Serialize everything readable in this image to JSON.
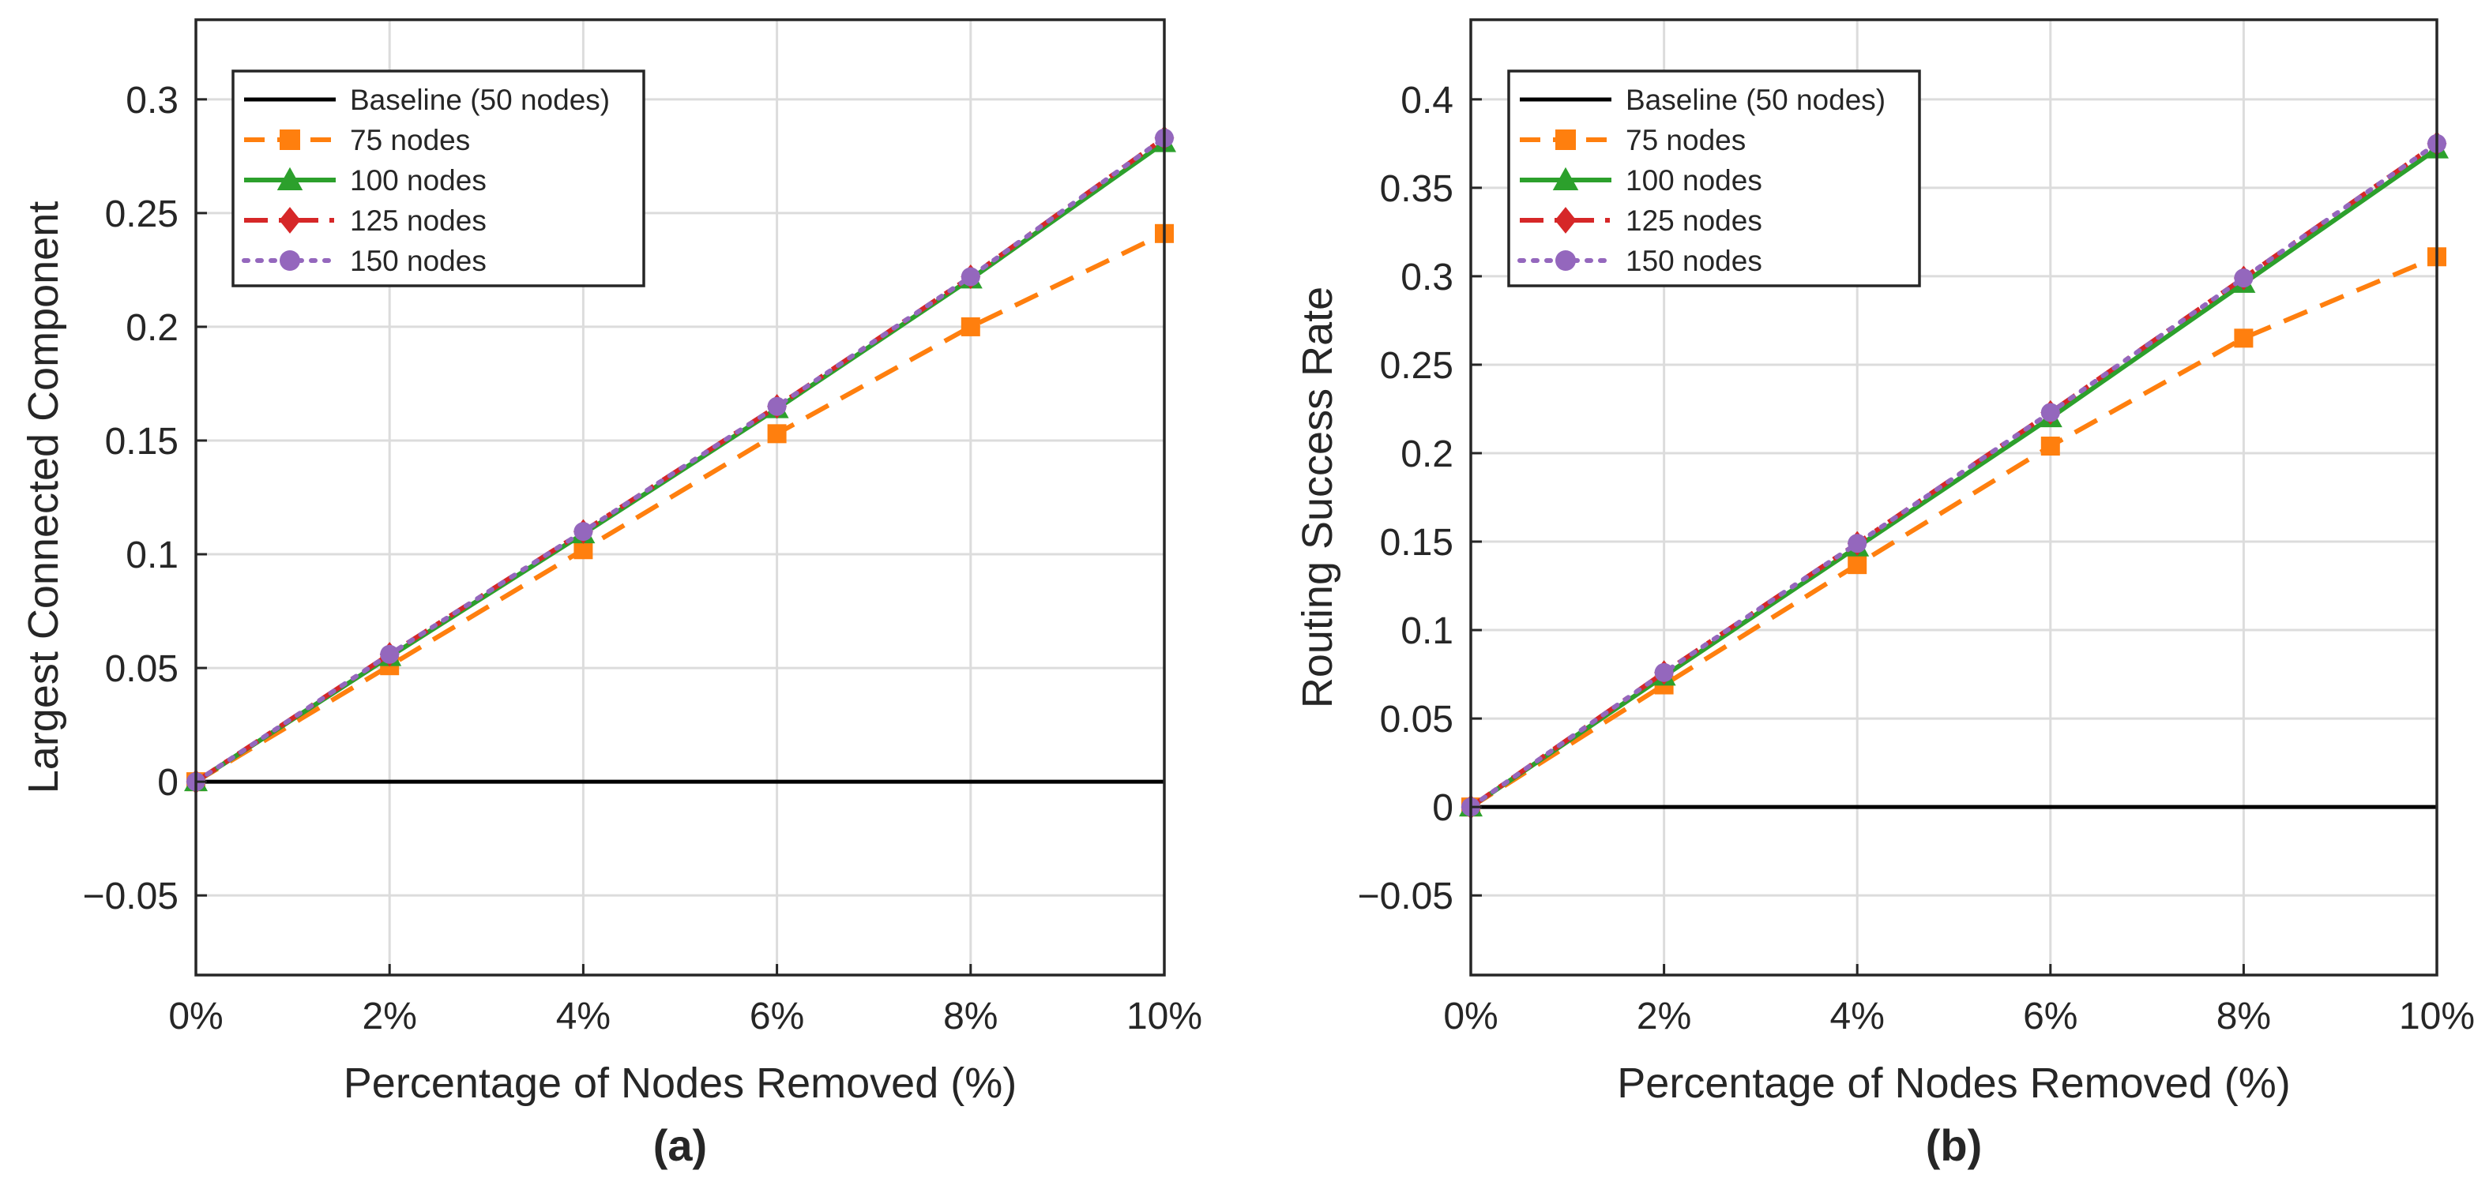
{
  "figure": {
    "colors": {
      "baseline": "#000000",
      "75": "#FF7F0E",
      "100": "#2CA02C",
      "125": "#D62728",
      "150": "#9467BD",
      "grid": "#DCDCDC",
      "axis": "#262626"
    }
  },
  "chart_data": [
    {
      "type": "line",
      "panel_label": "(a)",
      "xlabel": "Percentage of Nodes Removed (%)",
      "ylabel": "Largest Connected Component",
      "x": [
        0,
        2,
        4,
        6,
        8,
        10
      ],
      "x_tick_labels": [
        "0%",
        "2%",
        "4%",
        "6%",
        "8%",
        "10%"
      ],
      "xlim": [
        0,
        10
      ],
      "ylim": [
        -0.085,
        0.335
      ],
      "y_ticks": [
        -0.05,
        0,
        0.05,
        0.1,
        0.15,
        0.2,
        0.25,
        0.3
      ],
      "y_tick_labels": [
        "−0.05",
        "0",
        "0.05",
        "0.1",
        "0.15",
        "0.2",
        "0.25",
        "0.3"
      ],
      "grid": true,
      "legend_position": "top-left",
      "series": [
        {
          "name": "Baseline (50 nodes)",
          "values": [
            0,
            0,
            0,
            0,
            0,
            0
          ],
          "color": "#000000",
          "style": "solid",
          "marker": "none"
        },
        {
          "name": "75 nodes",
          "values": [
            0,
            0.051,
            0.102,
            0.153,
            0.2,
            0.241
          ],
          "color": "#FF7F0E",
          "style": "dashed",
          "marker": "square"
        },
        {
          "name": "100 nodes",
          "values": [
            0,
            0.055,
            0.109,
            0.164,
            0.221,
            0.281
          ],
          "color": "#2CA02C",
          "style": "solid",
          "marker": "triangle"
        },
        {
          "name": "125 nodes",
          "values": [
            0,
            0.056,
            0.11,
            0.165,
            0.222,
            0.283
          ],
          "color": "#D62728",
          "style": "dashdot",
          "marker": "diamond"
        },
        {
          "name": "150 nodes",
          "values": [
            0,
            0.056,
            0.11,
            0.165,
            0.222,
            0.283
          ],
          "color": "#9467BD",
          "style": "dotted",
          "marker": "circle"
        }
      ]
    },
    {
      "type": "line",
      "panel_label": "(b)",
      "xlabel": "Percentage of Nodes Removed (%)",
      "ylabel": "Routing Success Rate",
      "x": [
        0,
        2,
        4,
        6,
        8,
        10
      ],
      "x_tick_labels": [
        "0%",
        "2%",
        "4%",
        "6%",
        "8%",
        "10%"
      ],
      "xlim": [
        0,
        10
      ],
      "ylim": [
        -0.095,
        0.445
      ],
      "y_ticks": [
        -0.05,
        0,
        0.05,
        0.1,
        0.15,
        0.2,
        0.25,
        0.3,
        0.35,
        0.4
      ],
      "y_tick_labels": [
        "−0.05",
        "0",
        "0.05",
        "0.1",
        "0.15",
        "0.2",
        "0.25",
        "0.3",
        "0.35",
        "0.4"
      ],
      "grid": true,
      "legend_position": "top-left",
      "series": [
        {
          "name": "Baseline (50 nodes)",
          "values": [
            0,
            0,
            0,
            0,
            0,
            0
          ],
          "color": "#000000",
          "style": "solid",
          "marker": "none"
        },
        {
          "name": "75 nodes",
          "values": [
            0,
            0.069,
            0.137,
            0.204,
            0.265,
            0.311
          ],
          "color": "#FF7F0E",
          "style": "dashed",
          "marker": "square"
        },
        {
          "name": "100 nodes",
          "values": [
            0,
            0.074,
            0.147,
            0.22,
            0.296,
            0.372
          ],
          "color": "#2CA02C",
          "style": "solid",
          "marker": "triangle"
        },
        {
          "name": "125 nodes",
          "values": [
            0,
            0.076,
            0.149,
            0.223,
            0.299,
            0.375
          ],
          "color": "#D62728",
          "style": "dashdot",
          "marker": "diamond"
        },
        {
          "name": "150 nodes",
          "values": [
            0,
            0.076,
            0.149,
            0.223,
            0.299,
            0.375
          ],
          "color": "#9467BD",
          "style": "dotted",
          "marker": "circle"
        }
      ]
    }
  ]
}
